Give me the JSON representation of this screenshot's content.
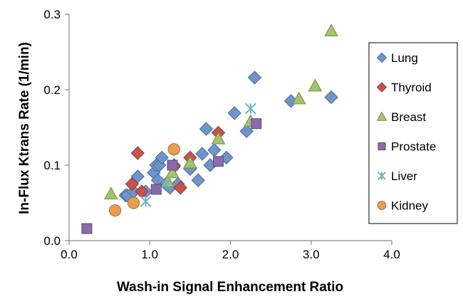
{
  "chart_data": {
    "type": "scatter",
    "title": "",
    "xlabel": "Wash-in Signal Enhancement Ratio",
    "ylabel": "In-Flux Ktrans Rate (1/min)",
    "xlim": [
      0,
      4
    ],
    "ylim": [
      0,
      0.3
    ],
    "x_ticks": [
      "0.0",
      "1.0",
      "2.0",
      "3.0",
      "4.0"
    ],
    "y_ticks": [
      "0.0",
      "0.1",
      "0.2",
      "0.3"
    ],
    "grid": false,
    "legend_position": "right",
    "series": [
      {
        "name": "Lung",
        "marker": "diamond",
        "color": "#6d95cc",
        "points": [
          [
            0.7,
            0.06
          ],
          [
            0.72,
            0.06
          ],
          [
            0.8,
            0.065
          ],
          [
            0.85,
            0.085
          ],
          [
            0.95,
            0.065
          ],
          [
            1.05,
            0.09
          ],
          [
            1.08,
            0.1
          ],
          [
            1.1,
            0.08
          ],
          [
            1.12,
            0.1
          ],
          [
            1.15,
            0.11
          ],
          [
            1.2,
            0.075
          ],
          [
            1.25,
            0.07
          ],
          [
            1.3,
            0.1
          ],
          [
            1.35,
            0.075
          ],
          [
            1.5,
            0.095
          ],
          [
            1.6,
            0.08
          ],
          [
            1.65,
            0.115
          ],
          [
            1.7,
            0.148
          ],
          [
            1.75,
            0.1
          ],
          [
            1.8,
            0.12
          ],
          [
            1.95,
            0.11
          ],
          [
            2.05,
            0.169
          ],
          [
            2.2,
            0.145
          ],
          [
            2.3,
            0.216
          ],
          [
            2.75,
            0.185
          ],
          [
            3.25,
            0.19
          ]
        ]
      },
      {
        "name": "Thyroid",
        "marker": "diamond",
        "color": "#c8514e",
        "points": [
          [
            0.78,
            0.075
          ],
          [
            0.85,
            0.116
          ],
          [
            0.9,
            0.065
          ],
          [
            1.3,
            0.098
          ],
          [
            1.38,
            0.07
          ],
          [
            1.5,
            0.11
          ],
          [
            1.85,
            0.143
          ]
        ]
      },
      {
        "name": "Breast",
        "marker": "triangle",
        "color": "#a3c46a",
        "points": [
          [
            0.52,
            0.062
          ],
          [
            1.22,
            0.078
          ],
          [
            1.28,
            0.09
          ],
          [
            1.5,
            0.103
          ],
          [
            1.85,
            0.135
          ],
          [
            2.25,
            0.158
          ],
          [
            2.85,
            0.188
          ],
          [
            3.05,
            0.205
          ],
          [
            3.25,
            0.278
          ]
        ]
      },
      {
        "name": "Prostate",
        "marker": "square",
        "color": "#8a6aaa",
        "points": [
          [
            0.22,
            0.016
          ],
          [
            1.08,
            0.068
          ],
          [
            1.28,
            0.1
          ],
          [
            1.85,
            0.105
          ],
          [
            2.32,
            0.155
          ]
        ]
      },
      {
        "name": "Liver",
        "marker": "x",
        "color": "#6bb2c9",
        "points": [
          [
            0.95,
            0.052
          ],
          [
            1.2,
            0.075
          ],
          [
            2.25,
            0.175
          ]
        ]
      },
      {
        "name": "Kidney",
        "marker": "circle",
        "color": "#eb9c4e",
        "points": [
          [
            0.57,
            0.04
          ],
          [
            0.8,
            0.05
          ],
          [
            1.3,
            0.121
          ]
        ]
      }
    ]
  }
}
